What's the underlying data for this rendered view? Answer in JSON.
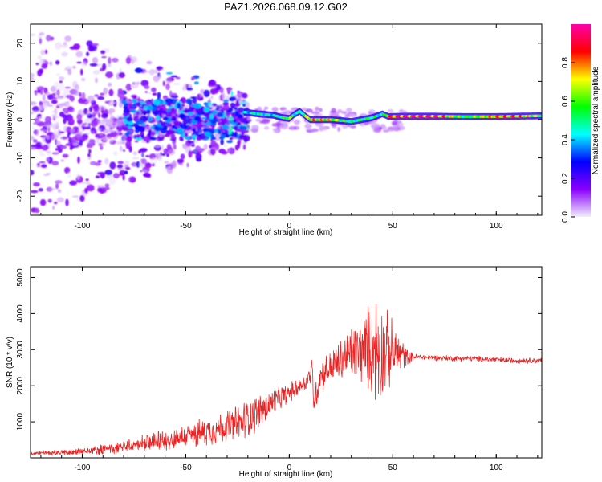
{
  "title": "PAZ1.2026.068.09.12.G02",
  "chart_data": [
    {
      "type": "heatmap",
      "name": "spectrogram",
      "xlabel": "Height of straight line (km)",
      "ylabel": "Frequency (Hz)",
      "xlim": [
        -125,
        122
      ],
      "ylim": [
        -25,
        25
      ],
      "xticks": [
        -100,
        -50,
        0,
        50,
        100
      ],
      "yticks": [
        -20,
        -10,
        0,
        10,
        20
      ],
      "xtick_labels": [
        "-100",
        "-50",
        "0",
        "50",
        "100"
      ],
      "ytick_labels": [
        "-20",
        "-10",
        "0",
        "10",
        "20"
      ],
      "main_line": {
        "x": [
          -22,
          -15,
          -8,
          -3,
          0,
          2,
          5,
          10,
          20,
          30,
          40,
          45,
          48,
          55,
          70,
          85,
          100,
          110,
          122
        ],
        "freq": [
          2.0,
          1.5,
          1.2,
          0.5,
          0.3,
          1.2,
          2.2,
          0.0,
          0.0,
          -0.5,
          0.5,
          1.5,
          0.8,
          0.9,
          0.9,
          0.8,
          0.8,
          0.9,
          1.0
        ],
        "amplitude": [
          0.45,
          0.55,
          0.5,
          0.6,
          0.75,
          0.55,
          0.5,
          0.85,
          0.8,
          0.55,
          0.6,
          0.5,
          0.95,
          1.0,
          1.0,
          0.6,
          0.9,
          0.9,
          0.7
        ]
      },
      "colorbar": {
        "label": "Normalized spectral amplitude",
        "range": [
          0,
          1
        ],
        "ticks": [
          0.0,
          0.2,
          0.4,
          0.6,
          0.8
        ],
        "tick_labels": [
          "0.0",
          "0.2",
          "0.4",
          "0.6",
          "0.8"
        ],
        "colors": [
          "#f2eefc",
          "#8a00ff",
          "#0000ff",
          "#00ffff",
          "#00ff00",
          "#ffff00",
          "#ff0000",
          "#ff00aa"
        ]
      }
    },
    {
      "type": "line",
      "name": "snr",
      "xlabel": "Height of straight line (km)",
      "ylabel": "SNR (10 * v/v)",
      "xlim": [
        -125,
        122
      ],
      "ylim": [
        0,
        5300
      ],
      "xticks": [
        -100,
        -50,
        0,
        50,
        100
      ],
      "yticks": [
        1000,
        2000,
        3000,
        4000,
        5000
      ],
      "xtick_labels": [
        "-100",
        "-50",
        "0",
        "50",
        "100"
      ],
      "ytick_labels": [
        "1000",
        "2000",
        "3000",
        "4000",
        "5000"
      ],
      "line_color": "#ee2222",
      "envelope": {
        "x": [
          -125,
          -115,
          -105,
          -95,
          -85,
          -75,
          -65,
          -55,
          -45,
          -35,
          -25,
          -20,
          -15,
          -10,
          -5,
          0,
          5,
          8,
          10,
          11,
          12,
          15,
          20,
          25,
          30,
          35,
          40,
          43,
          45,
          50,
          55,
          57,
          60,
          70,
          80,
          90,
          100,
          110,
          122
        ],
        "base": [
          120,
          140,
          160,
          200,
          260,
          340,
          430,
          540,
          660,
          800,
          950,
          1100,
          1250,
          1450,
          1650,
          1800,
          2000,
          2100,
          2300,
          2500,
          1500,
          2300,
          2500,
          2700,
          2900,
          3000,
          3050,
          3000,
          3000,
          2900,
          2850,
          2800,
          2800,
          2780,
          2760,
          2750,
          2720,
          2700,
          2700
        ],
        "amp": [
          60,
          90,
          110,
          140,
          180,
          230,
          300,
          350,
          420,
          500,
          600,
          650,
          600,
          500,
          400,
          300,
          300,
          300,
          350,
          400,
          500,
          500,
          550,
          700,
          900,
          1100,
          1500,
          2000,
          1500,
          1000,
          500,
          250,
          100,
          90,
          90,
          90,
          90,
          90,
          90
        ]
      }
    }
  ]
}
